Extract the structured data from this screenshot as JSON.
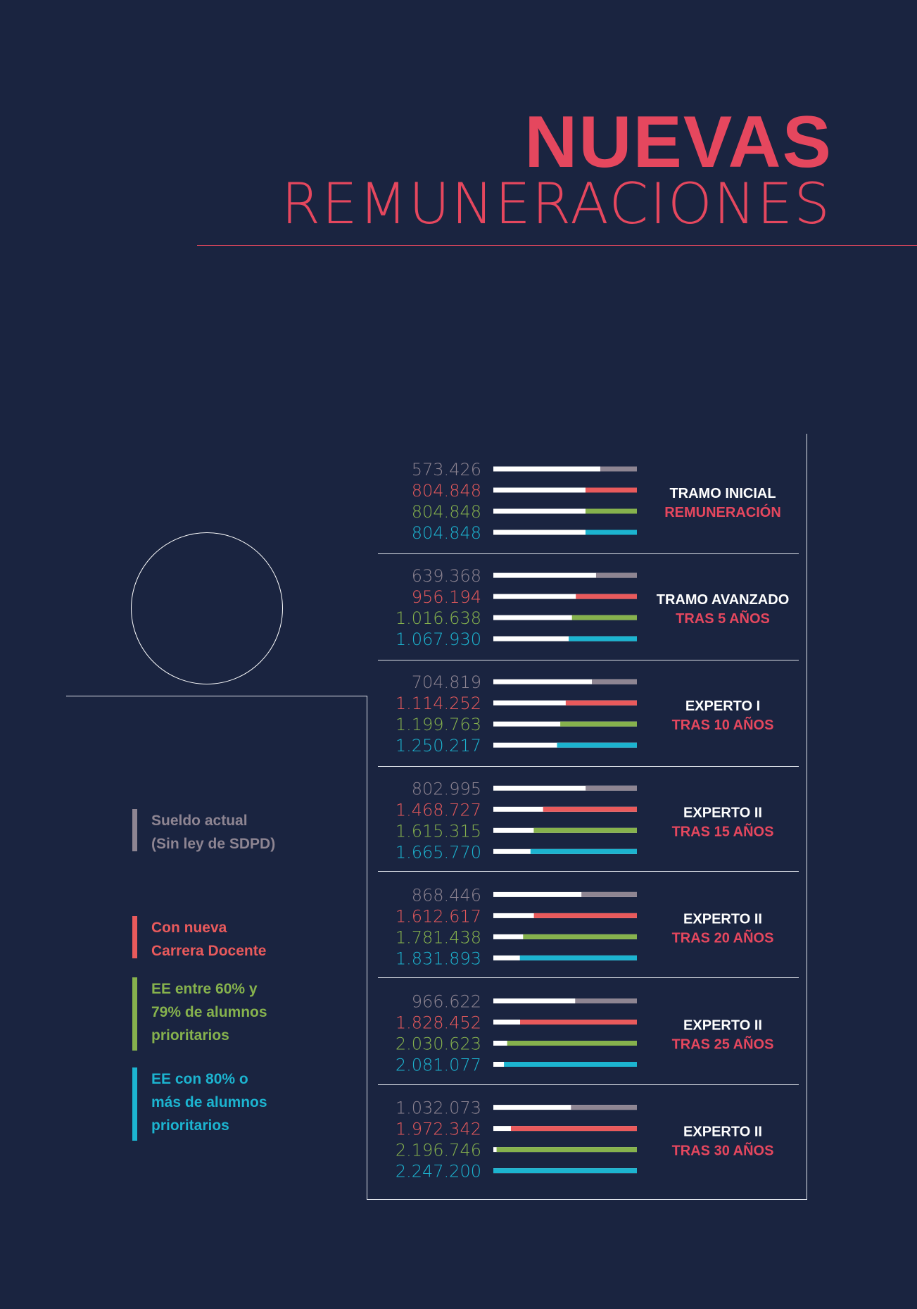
{
  "header": {
    "title_bold": "NUEVAS",
    "title_light": "REMUNERACIONES"
  },
  "colors": {
    "background": "#1a2440",
    "accent": "#e5475e",
    "sueldo_actual": "#8e8592",
    "carrera_docente": "#e95a5c",
    "ee_60_79": "#86b24d",
    "ee_80": "#1cb4d0",
    "base_bar": "#ffffff"
  },
  "legend": [
    {
      "label": "Sueldo actual\n(Sin ley de SDPD)",
      "color": "#8e8592"
    },
    {
      "label": "Con nueva\nCarrera Docente",
      "color": "#e95a5c"
    },
    {
      "label": "EE entre 60% y\n79% de alumnos\nprioritarios",
      "color": "#86b24d"
    },
    {
      "label": "EE con 80% o\nmás de alumnos\nprioritarios",
      "color": "#1cb4d0"
    }
  ],
  "chart_data": {
    "type": "bar",
    "title": "NUEVAS REMUNERACIONES",
    "series_names": [
      "Sueldo actual (Sin ley de SDPD)",
      "Con nueva Carrera Docente",
      "EE entre 60% y 79% de alumnos prioritarios",
      "EE con 80% o más de alumnos prioritarios"
    ],
    "scale_max": 2247200,
    "groups": [
      {
        "label": "TRAMO INICIAL",
        "sublabel": "REMUNERACIÓN",
        "values": [
          573426,
          804848,
          804848,
          804848
        ],
        "labels": [
          "573.426",
          "804.848",
          "804.848",
          "804.848"
        ]
      },
      {
        "label": "TRAMO AVANZADO",
        "sublabel": "TRAS 5 AÑOS",
        "values": [
          639368,
          956194,
          1016638,
          1067930
        ],
        "labels": [
          "639.368",
          "956.194",
          "1.016.638",
          "1.067.930"
        ]
      },
      {
        "label": "EXPERTO I",
        "sublabel": "TRAS 10 AÑOS",
        "values": [
          704819,
          1114252,
          1199763,
          1250217
        ],
        "labels": [
          "704.819",
          "1.114.252",
          "1.199.763",
          "1.250.217"
        ]
      },
      {
        "label": "EXPERTO II",
        "sublabel": "TRAS 15 AÑOS",
        "values": [
          802995,
          1468727,
          1615315,
          1665770
        ],
        "labels": [
          "802.995",
          "1.468.727",
          "1.615.315",
          "1.665.770"
        ]
      },
      {
        "label": "EXPERTO II",
        "sublabel": "TRAS 20 AÑOS",
        "values": [
          868446,
          1612617,
          1781438,
          1831893
        ],
        "labels": [
          "868.446",
          "1.612.617",
          "1.781.438",
          "1.831.893"
        ]
      },
      {
        "label": "EXPERTO II",
        "sublabel": "TRAS 25 AÑOS",
        "values": [
          966622,
          1828452,
          2030623,
          2081077
        ],
        "labels": [
          "966.622",
          "1.828.452",
          "2.030.623",
          "2.081.077"
        ]
      },
      {
        "label": "EXPERTO II",
        "sublabel": "TRAS 30 AÑOS",
        "values": [
          1032073,
          1972342,
          2196746,
          2247200
        ],
        "labels": [
          "1.032.073",
          "1.972.342",
          "2.196.746",
          "2.247.200"
        ]
      }
    ]
  }
}
